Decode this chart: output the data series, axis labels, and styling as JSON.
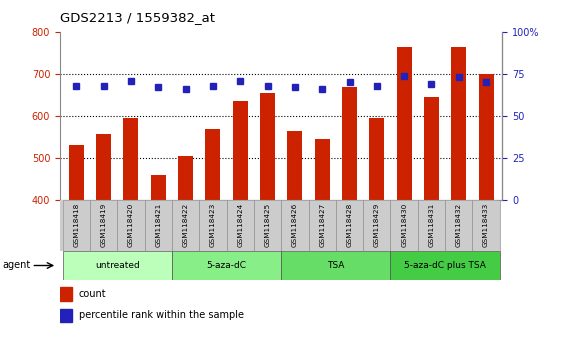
{
  "title": "GDS2213 / 1559382_at",
  "samples": [
    "GSM118418",
    "GSM118419",
    "GSM118420",
    "GSM118421",
    "GSM118422",
    "GSM118423",
    "GSM118424",
    "GSM118425",
    "GSM118426",
    "GSM118427",
    "GSM118428",
    "GSM118429",
    "GSM118430",
    "GSM118431",
    "GSM118432",
    "GSM118433"
  ],
  "counts": [
    530,
    558,
    595,
    460,
    505,
    570,
    635,
    655,
    565,
    545,
    670,
    595,
    765,
    645,
    765,
    700
  ],
  "percentiles": [
    68,
    68,
    71,
    67,
    66,
    68,
    71,
    68,
    67,
    66,
    70,
    68,
    74,
    69,
    73,
    70
  ],
  "bar_color": "#CC2200",
  "dot_color": "#2222BB",
  "left_ylim": [
    400,
    800
  ],
  "left_yticks": [
    400,
    500,
    600,
    700,
    800
  ],
  "right_ylim": [
    0,
    100
  ],
  "right_yticks": [
    0,
    25,
    50,
    75,
    100
  ],
  "right_yticklabels": [
    "0",
    "25",
    "50",
    "75",
    "100%"
  ],
  "groups": [
    {
      "label": "untreated",
      "start": 0,
      "end": 3,
      "color": "#BBFFBB"
    },
    {
      "label": "5-aza-dC",
      "start": 4,
      "end": 7,
      "color": "#88EE88"
    },
    {
      "label": "TSA",
      "start": 8,
      "end": 11,
      "color": "#66DD66"
    },
    {
      "label": "5-aza-dC plus TSA",
      "start": 12,
      "end": 15,
      "color": "#44CC44"
    }
  ],
  "agent_label": "agent",
  "legend_count_label": "count",
  "legend_percentile_label": "percentile rank within the sample",
  "left_yticklabel_color": "#CC2200",
  "right_yticklabel_color": "#2222BB",
  "grid_dotted_ticks": [
    500,
    600,
    700
  ]
}
